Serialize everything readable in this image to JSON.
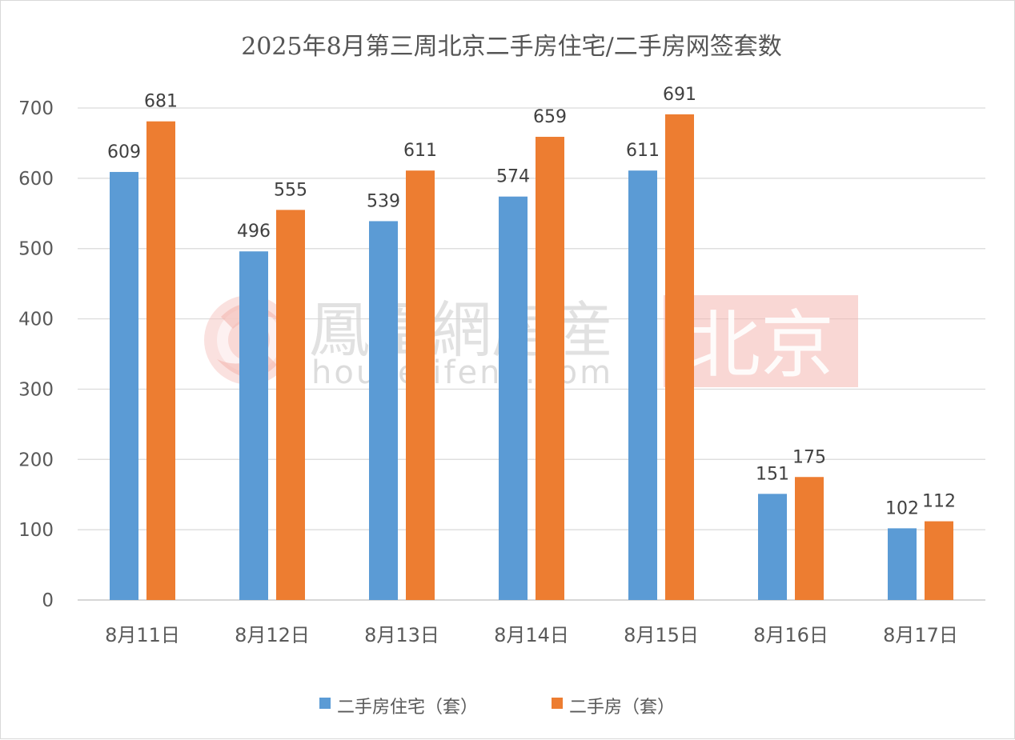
{
  "chart_data": {
    "type": "bar",
    "title": "2025年8月第三周北京二手房住宅/二手房网签套数",
    "categories": [
      "8月11日",
      "8月12日",
      "8月13日",
      "8月14日",
      "8月15日",
      "8月16日",
      "8月17日"
    ],
    "series": [
      {
        "name": "二手房住宅（套）",
        "color": "#5b9bd5",
        "values": [
          609,
          496,
          539,
          574,
          611,
          151,
          102
        ]
      },
      {
        "name": "二手房（套）",
        "color": "#ed7d31",
        "values": [
          681,
          555,
          611,
          659,
          691,
          175,
          112
        ]
      }
    ],
    "ylim": [
      0,
      700
    ],
    "yticks": [
      0,
      100,
      200,
      300,
      400,
      500,
      600,
      700
    ],
    "grid": true,
    "legend_position": "bottom",
    "data_labels": true
  },
  "watermark": {
    "logo_text": "鳳凰網房産",
    "url_text": "house.ifeng.com",
    "city_badge": "北京",
    "badge_color": "#f4b6b0"
  }
}
